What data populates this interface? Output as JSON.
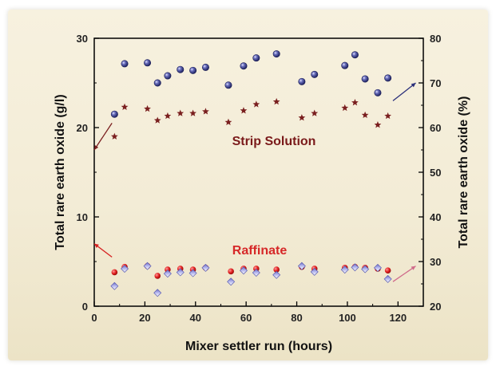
{
  "chart_data": {
    "type": "scatter",
    "xlabel": "Mixer settler run (hours)",
    "ylabel_left": "Total rare earth oxide (g/l)",
    "ylabel_right": "Total rare earth oxide (%)",
    "xlim": [
      0,
      130
    ],
    "ylim_left": [
      0,
      30
    ],
    "ylim_right": [
      20,
      80
    ],
    "x_ticks": [
      0,
      20,
      40,
      60,
      80,
      100,
      120
    ],
    "y_left_ticks": [
      0,
      10,
      20,
      30
    ],
    "y_right_ticks": [
      20,
      30,
      40,
      50,
      60,
      70,
      80
    ],
    "grid": false,
    "annotations": [
      "Strip Solution",
      "Raffinate"
    ],
    "colors": {
      "strip_percent": "#2a2f7a",
      "strip_gl": "#7a1f1f",
      "raffinate_gl": "#d62020",
      "raffinate_percent": "#8a8ad0",
      "strip_label": "#7a1a1a",
      "raffinate_label": "#d62828"
    },
    "series": [
      {
        "marker": "dark-blue-sphere",
        "axis": "right",
        "x": [
          8,
          12,
          21,
          25,
          29,
          34,
          39,
          44,
          53,
          59,
          64,
          72,
          82,
          87,
          99,
          103,
          107,
          112,
          116
        ],
        "y": [
          63,
          74.3,
          74.5,
          70,
          71.6,
          73,
          72.8,
          73.5,
          69.5,
          73.8,
          75.6,
          76.5,
          70.3,
          71.9,
          73.9,
          76.3,
          70.9,
          67.8,
          71.1
        ]
      },
      {
        "marker": "maroon-star",
        "axis": "left",
        "x": [
          8,
          12,
          21,
          25,
          29,
          34,
          39,
          44,
          53,
          59,
          64,
          72,
          82,
          87,
          99,
          103,
          107,
          112,
          116
        ],
        "y": [
          19.0,
          22.3,
          22.1,
          20.8,
          21.3,
          21.6,
          21.6,
          21.8,
          20.6,
          21.9,
          22.6,
          22.9,
          21.1,
          21.6,
          22.2,
          22.8,
          21.4,
          20.3,
          21.3
        ]
      },
      {
        "marker": "red-dot",
        "axis": "left",
        "x": [
          8,
          12,
          21,
          25,
          29,
          34,
          39,
          44,
          54,
          59,
          64,
          72,
          82,
          87,
          99,
          103,
          107,
          112,
          116
        ],
        "y": [
          3.8,
          4.4,
          4.5,
          3.4,
          4.1,
          4.2,
          4.1,
          4.3,
          3.9,
          4.2,
          4.2,
          4.1,
          4.4,
          4.2,
          4.3,
          4.4,
          4.3,
          4.2,
          4.0
        ]
      },
      {
        "marker": "light-blue-diamond",
        "axis": "right",
        "x": [
          8,
          12,
          21,
          25,
          29,
          34,
          39,
          44,
          54,
          59,
          64,
          72,
          82,
          87,
          99,
          103,
          107,
          112,
          116
        ],
        "y": [
          24.5,
          28.4,
          29.0,
          23.0,
          27.3,
          27.6,
          27.4,
          28.6,
          25.5,
          28.0,
          27.5,
          27.0,
          29.0,
          27.7,
          28.2,
          28.7,
          28.3,
          28.6,
          26.1
        ]
      }
    ],
    "pointer_arrows": [
      {
        "from": [
          7,
          61
        ],
        "to": [
          0,
          55
        ],
        "axis": "right",
        "color": "#7a1f1f"
      },
      {
        "from": [
          118,
          66
        ],
        "to": [
          127,
          70
        ],
        "axis": "right",
        "color": "#2a2f7a"
      },
      {
        "from": [
          7,
          31
        ],
        "to": [
          0,
          34
        ],
        "axis": "right",
        "color": "#d62020"
      },
      {
        "from": [
          118,
          25.5
        ],
        "to": [
          127,
          29
        ],
        "axis": "right",
        "color": "#d06a8a"
      }
    ]
  }
}
